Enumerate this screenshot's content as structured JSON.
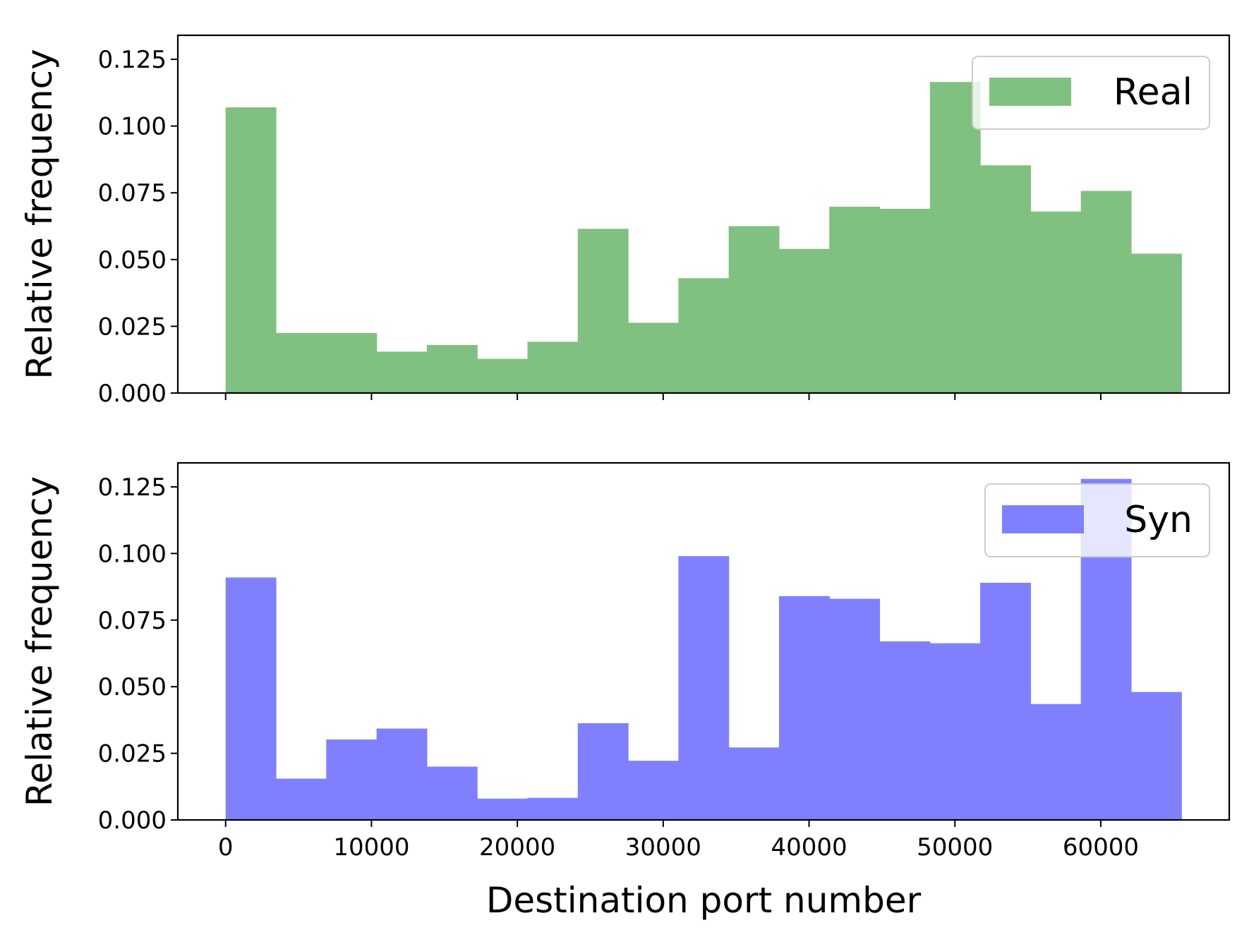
{
  "chart_data": [
    {
      "type": "bar",
      "panel": "top",
      "bin_edges": [
        0,
        3449,
        6898,
        10347,
        13796,
        17245,
        20694,
        24143,
        27592,
        31041,
        34490,
        37939,
        41388,
        44837,
        48286,
        51735,
        55184,
        58633,
        62082,
        65531
      ],
      "series": [
        {
          "name": "Real",
          "color": "#80c080",
          "values": [
            0.107,
            0.0225,
            0.0225,
            0.0155,
            0.018,
            0.0128,
            0.0192,
            0.0615,
            0.0263,
            0.043,
            0.0625,
            0.054,
            0.0698,
            0.069,
            0.1165,
            0.0853,
            0.068,
            0.0757,
            0.0522
          ]
        }
      ],
      "xlabel": "",
      "ylabel": "Relative frequency",
      "xlim": [
        -3277,
        68808
      ],
      "ylim": [
        0,
        0.134
      ],
      "xticks": [
        0,
        10000,
        20000,
        30000,
        40000,
        50000,
        60000
      ],
      "yticks": [
        "0.000",
        "0.025",
        "0.050",
        "0.075",
        "0.100",
        "0.125"
      ],
      "show_xtick_labels": false,
      "grid": false,
      "legend_position": "top-right"
    },
    {
      "type": "bar",
      "panel": "bottom",
      "bin_edges": [
        0,
        3449,
        6898,
        10347,
        13796,
        17245,
        20694,
        24143,
        27592,
        31041,
        34490,
        37939,
        41388,
        44837,
        48286,
        51735,
        55184,
        58633,
        62082,
        65531
      ],
      "series": [
        {
          "name": "Syn",
          "color": "#8080ff",
          "values": [
            0.091,
            0.0155,
            0.0302,
            0.0343,
            0.02,
            0.008,
            0.0083,
            0.0363,
            0.0222,
            0.099,
            0.0272,
            0.084,
            0.083,
            0.067,
            0.0663,
            0.089,
            0.0435,
            0.128,
            0.048
          ]
        }
      ],
      "xlabel": "Destination port number",
      "ylabel": "Relative frequency",
      "xlim": [
        -3277,
        68808
      ],
      "ylim": [
        0,
        0.134
      ],
      "xticks": [
        "0",
        "10000",
        "20000",
        "30000",
        "40000",
        "50000",
        "60000"
      ],
      "yticks": [
        "0.000",
        "0.025",
        "0.050",
        "0.075",
        "0.100",
        "0.125"
      ],
      "show_xtick_labels": true,
      "grid": false,
      "legend_position": "top-right"
    }
  ]
}
